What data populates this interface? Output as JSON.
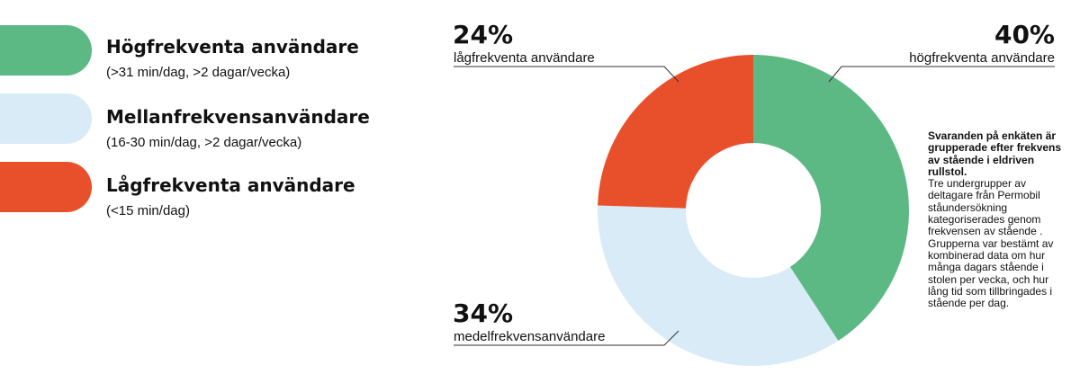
{
  "legend": [
    {
      "title": "Högfrekventa användare",
      "subtitle": "(>31 min/dag, >2 dagar/vecka)",
      "color": "#5cb984"
    },
    {
      "title": "Mellanfrekvensanvändare",
      "subtitle": "(16-30 min/dag, >2 dagar/vecka)",
      "color": "#d8ebf7"
    },
    {
      "title": "Lågfrekventa användare",
      "subtitle": "(<15 min/dag)",
      "color": "#e8502b"
    }
  ],
  "note": {
    "heading": "Svaranden på enkäten är grupperade efter frekvens av stående i eldriven rullstol.",
    "body": "Tre undergrupper av deltagare från Permobil ståundersökning kategoriserades genom frekvensen av stående . Grupperna var bestämt av kombinerad data om hur många dagars stående i stolen per vecka, och hur lång tid som  tillbringades i stående per dag."
  },
  "chart_data": {
    "type": "pie",
    "donut": true,
    "slices": [
      {
        "label": "högfrekventa användare",
        "value": 40,
        "pct_label": "40%",
        "color": "#5cb984"
      },
      {
        "label": "medelfrekvensanvändare",
        "value": 34,
        "pct_label": "34%",
        "color": "#d8ebf7"
      },
      {
        "label": "lågfrekventa användare",
        "value": 24,
        "pct_label": "24%",
        "color": "#e8502b"
      }
    ]
  }
}
